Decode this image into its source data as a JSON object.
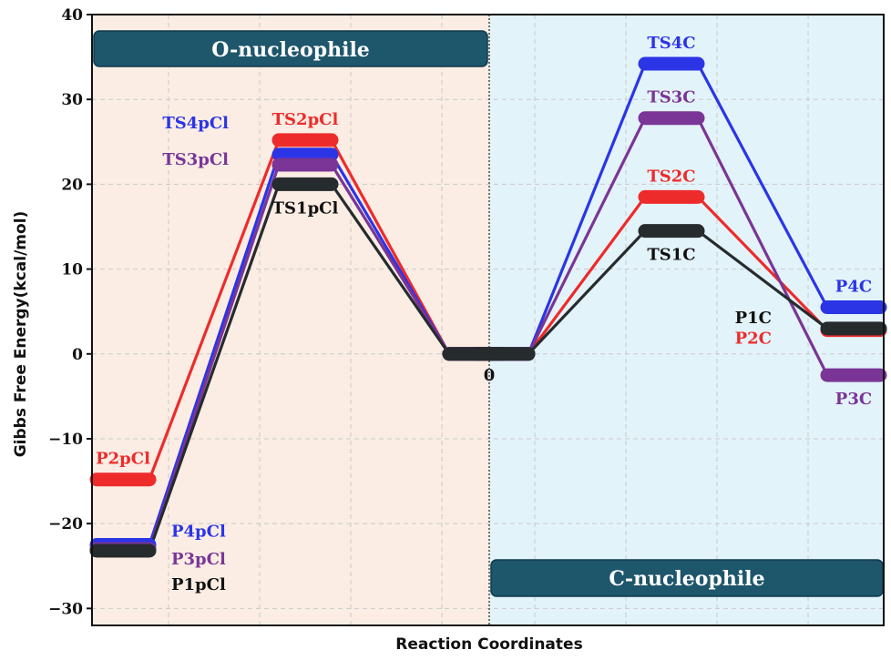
{
  "chart_data": {
    "type": "line",
    "xlabel": "Reaction Coordinates",
    "ylabel": "Gibbs Free Energy(kcal/mol)",
    "ylim": [
      -32,
      40
    ],
    "yticks": [
      -30,
      -20,
      -10,
      0,
      10,
      20,
      30,
      40
    ],
    "x_stations": [
      0,
      1,
      2,
      3,
      4,
      5,
      6
    ],
    "grid": true,
    "regions": [
      {
        "name": "O-nucleophile",
        "from": 0,
        "to": 3,
        "color": "#fbede3"
      },
      {
        "name": "C-nucleophile",
        "from": 3,
        "to": 6,
        "color": "#e3f3fa"
      }
    ],
    "zero_label": "0",
    "series": [
      {
        "color": "#ee2b2b",
        "points": [
          [
            0,
            -14.8
          ],
          [
            1,
            25.2
          ],
          [
            2,
            0
          ],
          [
            3,
            0
          ],
          [
            4,
            18.5
          ],
          [
            5,
            2.8
          ]
        ]
      },
      {
        "color": "#2b35e6",
        "points": [
          [
            0,
            -22.5
          ],
          [
            1,
            23.5
          ],
          [
            2,
            0
          ],
          [
            3,
            0
          ],
          [
            4,
            34.2
          ],
          [
            5,
            5.5
          ]
        ]
      },
      {
        "color": "#7a3596",
        "points": [
          [
            0,
            -23.0
          ],
          [
            1,
            22.3
          ],
          [
            2,
            0
          ],
          [
            3,
            0
          ],
          [
            4,
            27.8
          ],
          [
            5,
            -2.5
          ]
        ]
      },
      {
        "color": "#262b2e",
        "points": [
          [
            0,
            -23.2
          ],
          [
            1,
            20.0
          ],
          [
            2,
            0
          ],
          [
            3,
            0
          ],
          [
            4,
            14.5
          ],
          [
            5,
            3.0
          ]
        ]
      }
    ],
    "labels": [
      {
        "text": "P2pCl",
        "x": 0,
        "y": -14.8,
        "color": "#ee2b2b",
        "pos": "above"
      },
      {
        "text": "P4pCl",
        "x": 0,
        "y": -22.5,
        "color": "#2b35e6",
        "pos": "right-1"
      },
      {
        "text": "P3pCl",
        "x": 0,
        "y": -23.0,
        "color": "#7a3596",
        "pos": "right-2"
      },
      {
        "text": "P1pCl",
        "x": 0,
        "y": -23.2,
        "color": "#111111",
        "pos": "right-3"
      },
      {
        "text": "TS2pCl",
        "x": 1,
        "y": 25.2,
        "color": "#ee2b2b",
        "pos": "above"
      },
      {
        "text": "TS4pCl",
        "x": 1,
        "y": 23.5,
        "color": "#2b35e6",
        "pos": "left-1"
      },
      {
        "text": "TS3pCl",
        "x": 1,
        "y": 22.3,
        "color": "#7a3596",
        "pos": "left-2"
      },
      {
        "text": "TS1pCl",
        "x": 1,
        "y": 20.0,
        "color": "#111111",
        "pos": "below"
      },
      {
        "text": "TS4C",
        "x": 4,
        "y": 34.2,
        "color": "#2b35e6",
        "pos": "above"
      },
      {
        "text": "TS3C",
        "x": 4,
        "y": 27.8,
        "color": "#7a3596",
        "pos": "above"
      },
      {
        "text": "TS2C",
        "x": 4,
        "y": 18.5,
        "color": "#ee2b2b",
        "pos": "above"
      },
      {
        "text": "TS1C",
        "x": 4,
        "y": 14.5,
        "color": "#111111",
        "pos": "below"
      },
      {
        "text": "P4C",
        "x": 5,
        "y": 5.5,
        "color": "#2b35e6",
        "pos": "above"
      },
      {
        "text": "P1C",
        "x": 5,
        "y": 3.0,
        "color": "#111111",
        "pos": "left-1"
      },
      {
        "text": "P2C",
        "x": 5,
        "y": 2.8,
        "color": "#ee2b2b",
        "pos": "left-2"
      },
      {
        "text": "P3C",
        "x": 5,
        "y": -2.5,
        "color": "#7a3596",
        "pos": "below"
      }
    ]
  },
  "banners": {
    "o_label": "O-nucleophile",
    "c_label": "C-nucleophile",
    "color": "#1e566c"
  }
}
